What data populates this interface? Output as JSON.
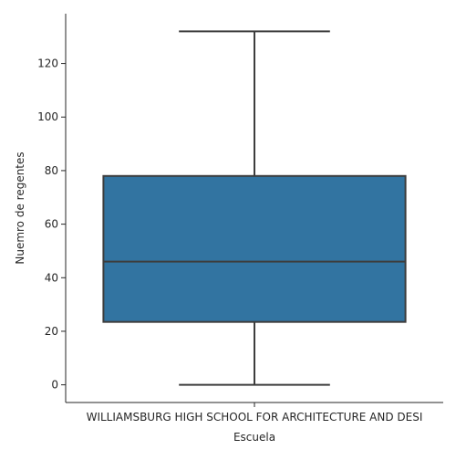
{
  "chart_data": {
    "type": "box",
    "title": "",
    "xlabel": "Escuela",
    "ylabel": "Nuemro de regentes",
    "categories": [
      "WILLIAMSBURG HIGH SCHOOL FOR ARCHITECTURE AND DESI"
    ],
    "boxes": [
      {
        "category": "WILLIAMSBURG HIGH SCHOOL FOR ARCHITECTURE AND DESI",
        "whisker_low": 0,
        "q1": 23.5,
        "median": 46,
        "q3": 78,
        "whisker_high": 132
      }
    ],
    "yticks": [
      0,
      20,
      40,
      60,
      80,
      100,
      120
    ],
    "ylim": [
      -6.6,
      138.6
    ],
    "grid": false,
    "legend": "none",
    "colors": {
      "box_fill": "#3274a1",
      "line": "#3d3d3d",
      "axis": "#262626"
    }
  }
}
